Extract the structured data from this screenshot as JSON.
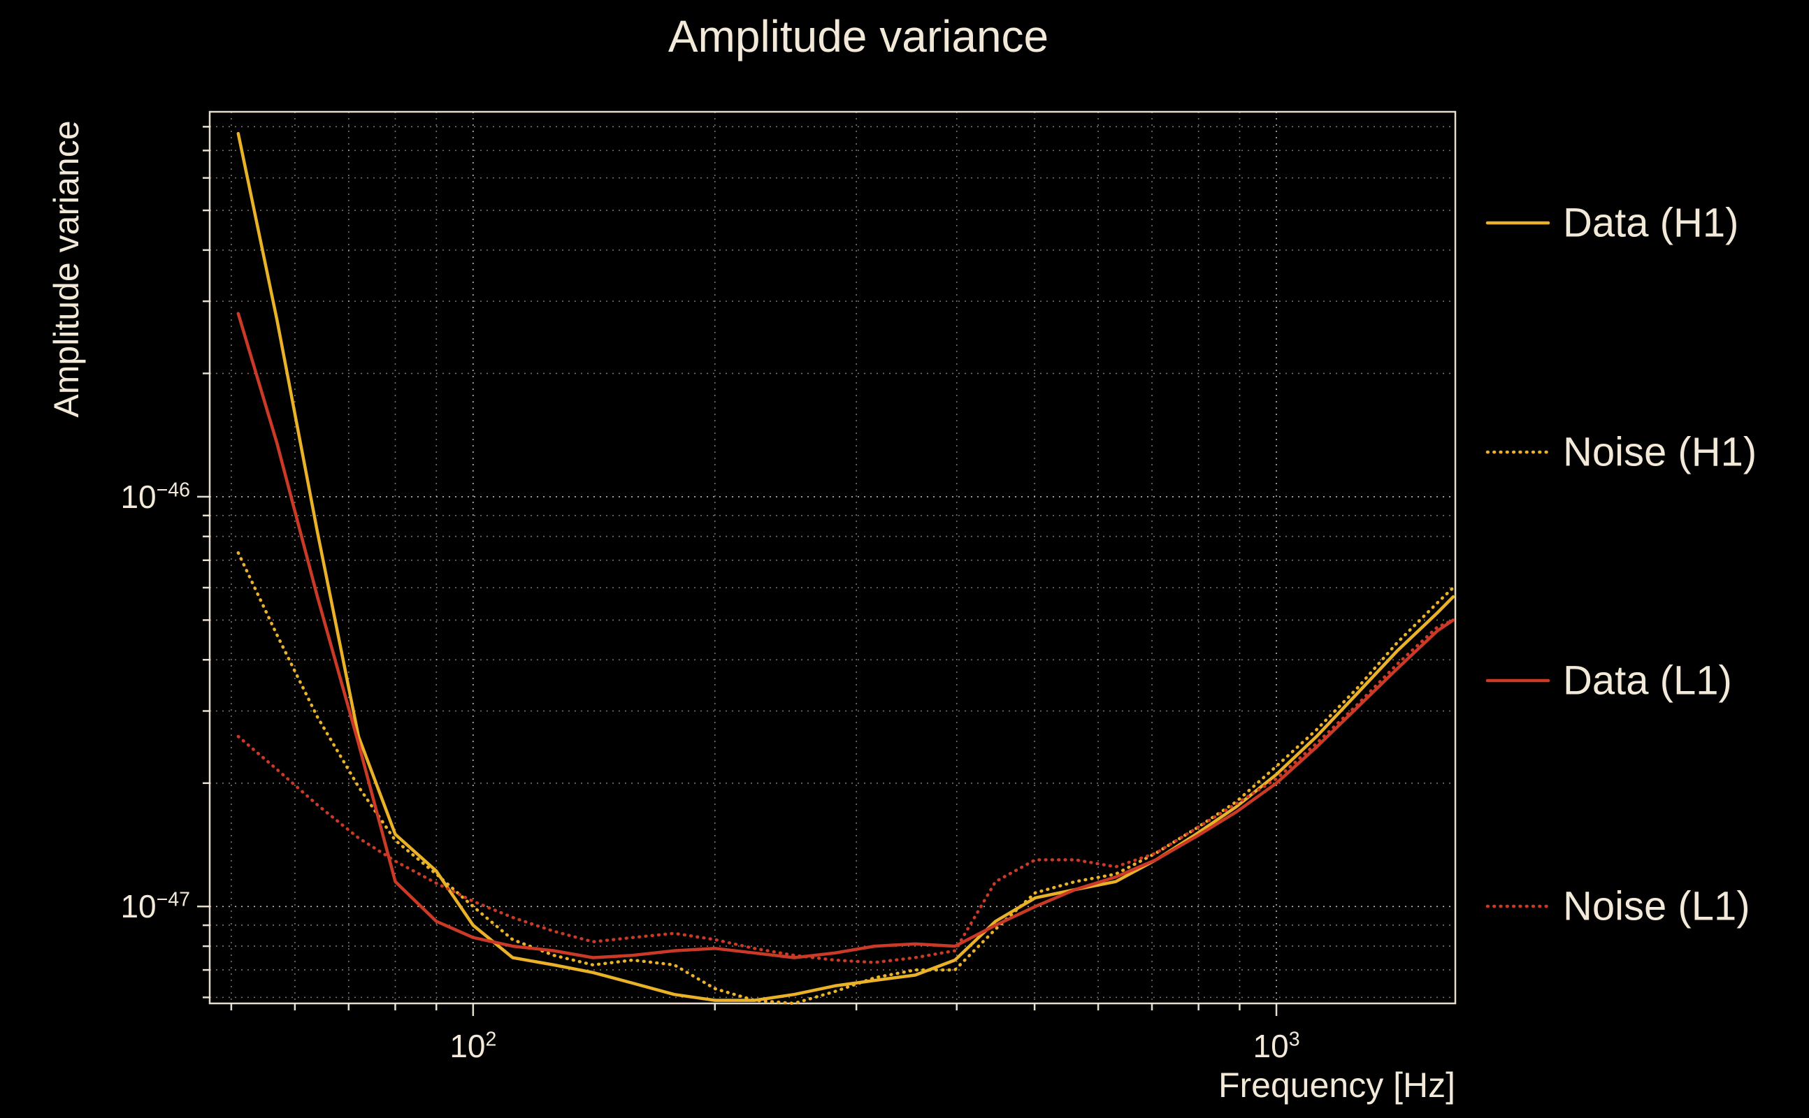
{
  "colors": {
    "background": "#000000",
    "text": "#f2e9d8",
    "grid": "#f2e9d8",
    "h1": "#e9b228",
    "l1": "#cb3a26"
  },
  "chart_data": {
    "type": "line",
    "title": "Amplitude variance",
    "xlabel": "Frequency [Hz]",
    "ylabel": "Amplitude variance",
    "xscale": "log",
    "yscale": "log",
    "xlim": [
      47,
      1670
    ],
    "ylim": [
      5.8e-48,
      8.7e-46
    ],
    "grid": true,
    "legend_position": "right-outside",
    "x": [
      51,
      57,
      64,
      72,
      80,
      90,
      100,
      112,
      126,
      141,
      158,
      178,
      200,
      224,
      251,
      282,
      316,
      355,
      398,
      447,
      501,
      562,
      631,
      708,
      794,
      891,
      1000,
      1122,
      1259,
      1413,
      1585,
      1660
    ],
    "series": [
      {
        "name": "Data (H1)",
        "color": "h1",
        "style": "solid",
        "values": [
          7.7e-46,
          2.7e-46,
          8.2e-47,
          2.6e-47,
          1.5e-47,
          1.22e-47,
          9e-48,
          7.5e-48,
          7.2e-48,
          6.9e-48,
          6.5e-48,
          6.1e-48,
          5.9e-48,
          5.9e-48,
          6.1e-48,
          6.4e-48,
          6.6e-48,
          6.8e-48,
          7.4e-48,
          9.2e-48,
          1.05e-47,
          1.1e-47,
          1.15e-47,
          1.3e-47,
          1.5e-47,
          1.75e-47,
          2.1e-47,
          2.6e-47,
          3.3e-47,
          4.2e-47,
          5.2e-47,
          5.7e-47
        ]
      },
      {
        "name": "Noise (H1)",
        "color": "h1",
        "style": "dotted",
        "values": [
          7.3e-47,
          4.6e-47,
          2.9e-47,
          1.96e-47,
          1.45e-47,
          1.2e-47,
          1e-47,
          8.3e-48,
          7.6e-48,
          7.2e-48,
          7.4e-48,
          7.2e-48,
          6.3e-48,
          5.9e-48,
          5.8e-48,
          6.2e-48,
          6.7e-48,
          7e-48,
          7e-48,
          8.8e-48,
          1.08e-47,
          1.15e-47,
          1.2e-47,
          1.35e-47,
          1.55e-47,
          1.8e-47,
          2.2e-47,
          2.7e-47,
          3.4e-47,
          4.4e-47,
          5.5e-47,
          6e-47
        ]
      },
      {
        "name": "Data (L1)",
        "color": "l1",
        "style": "solid",
        "values": [
          2.8e-46,
          1.35e-46,
          5.7e-47,
          2.5e-47,
          1.15e-47,
          9.2e-48,
          8.4e-48,
          8e-48,
          7.8e-48,
          7.5e-48,
          7.6e-48,
          7.8e-48,
          7.9e-48,
          7.7e-48,
          7.5e-48,
          7.7e-48,
          8e-48,
          8.1e-48,
          8e-48,
          9e-48,
          1e-47,
          1.1e-47,
          1.18e-47,
          1.3e-47,
          1.48e-47,
          1.7e-47,
          2e-47,
          2.45e-47,
          3.05e-47,
          3.8e-47,
          4.7e-47,
          5e-47
        ]
      },
      {
        "name": "Noise (L1)",
        "color": "l1",
        "style": "dotted",
        "values": [
          2.6e-47,
          2.16e-47,
          1.77e-47,
          1.47e-47,
          1.29e-47,
          1.14e-47,
          1.03e-47,
          9.4e-48,
          8.7e-48,
          8.2e-48,
          8.4e-48,
          8.6e-48,
          8.3e-48,
          7.9e-48,
          7.6e-48,
          7.4e-48,
          7.3e-48,
          7.5e-48,
          7.8e-48,
          1.15e-47,
          1.3e-47,
          1.3e-47,
          1.25e-47,
          1.35e-47,
          1.55e-47,
          1.78e-47,
          2.05e-47,
          2.5e-47,
          3.1e-47,
          3.9e-47,
          4.8e-47,
          5e-47
        ]
      }
    ],
    "x_ticks": [
      {
        "value": 100,
        "base": "10",
        "exp": "2"
      },
      {
        "value": 1000,
        "base": "10",
        "exp": "3"
      }
    ],
    "y_ticks": [
      {
        "value": 1e-46,
        "base": "10",
        "exp": "−46"
      },
      {
        "value": 1e-47,
        "base": "10",
        "exp": "−47"
      }
    ]
  }
}
